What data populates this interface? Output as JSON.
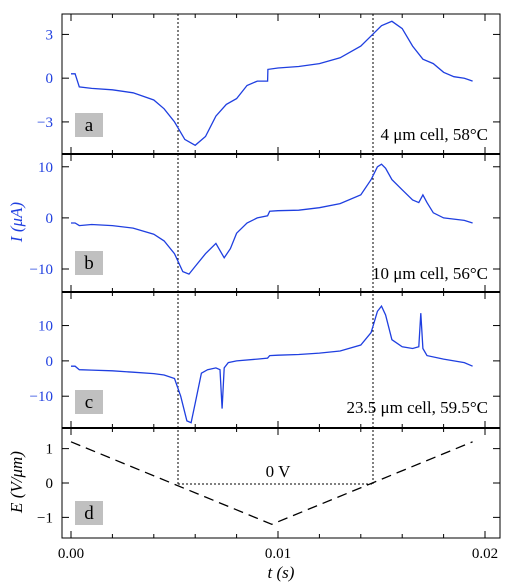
{
  "colors": {
    "trace": "#1f3fe0",
    "axis": "#000000",
    "tag_bg": "#c0c0c0"
  },
  "chart_data": [
    {
      "type": "line",
      "panel_label": "a",
      "annotation": "4 μm cell, 58°C",
      "xlim": [
        0,
        0.02
      ],
      "ylim": [
        -5.2,
        4.4
      ],
      "yticks": [
        3,
        0,
        -3
      ],
      "ytick_labels": [
        "3",
        "0",
        "−3"
      ],
      "series": [
        {
          "x": [
            0,
            0.0002,
            0.0004,
            0.001,
            0.002,
            0.003,
            0.004,
            0.0045,
            0.005,
            0.0055,
            0.006,
            0.0065,
            0.007,
            0.0075,
            0.008,
            0.0085,
            0.009,
            0.0095,
            0.00951,
            0.01,
            0.011,
            0.012,
            0.013,
            0.014,
            0.0145,
            0.015,
            0.0155,
            0.016,
            0.0165,
            0.017,
            0.0175,
            0.018,
            0.0185,
            0.019,
            0.0192,
            0.0194
          ],
          "y": [
            0.3,
            0.3,
            -0.6,
            -0.7,
            -0.8,
            -1.0,
            -1.5,
            -2.1,
            -3.0,
            -4.2,
            -4.6,
            -4.0,
            -2.6,
            -1.8,
            -1.4,
            -0.5,
            -0.2,
            -0.2,
            0.6,
            0.7,
            0.8,
            1.0,
            1.4,
            2.2,
            2.9,
            3.6,
            3.9,
            3.4,
            2.2,
            1.3,
            1.0,
            0.4,
            0.1,
            0.0,
            -0.1,
            -0.2
          ]
        }
      ]
    },
    {
      "type": "line",
      "panel_label": "b",
      "annotation": "10 μm cell, 56°C",
      "xlim": [
        0,
        0.02
      ],
      "ylim": [
        -14.5,
        12.5
      ],
      "yticks": [
        10,
        0,
        -10
      ],
      "ytick_labels": [
        "10",
        "0",
        "−10"
      ],
      "ylabel": "I (μA)",
      "series": [
        {
          "x": [
            0,
            0.0002,
            0.0004,
            0.001,
            0.002,
            0.003,
            0.004,
            0.0045,
            0.005,
            0.0054,
            0.0057,
            0.006,
            0.0065,
            0.007,
            0.0074,
            0.0077,
            0.008,
            0.0085,
            0.009,
            0.0095,
            0.0096,
            0.01,
            0.011,
            0.012,
            0.013,
            0.014,
            0.0145,
            0.0148,
            0.015,
            0.0152,
            0.0155,
            0.016,
            0.0165,
            0.0168,
            0.017,
            0.0172,
            0.0175,
            0.018,
            0.019,
            0.0194
          ],
          "y": [
            -1.0,
            -1.0,
            -1.5,
            -1.3,
            -1.5,
            -2.0,
            -3.2,
            -4.5,
            -7.0,
            -10.5,
            -11.0,
            -9.5,
            -7.0,
            -5.0,
            -7.8,
            -6.0,
            -3.0,
            -1.0,
            0.0,
            0.4,
            1.3,
            1.4,
            1.5,
            2.0,
            2.8,
            4.5,
            7.5,
            10.0,
            10.5,
            9.7,
            7.5,
            5.5,
            3.5,
            3.0,
            4.5,
            3.0,
            1.0,
            0.0,
            -0.5,
            -1.0
          ]
        }
      ]
    },
    {
      "type": "line",
      "panel_label": "c",
      "annotation": "23.5 μm cell, 59.5°C",
      "xlim": [
        0,
        0.02
      ],
      "ylim": [
        -19,
        19.5
      ],
      "yticks": [
        10,
        0,
        -10
      ],
      "ytick_labels": [
        "10",
        "0",
        "−10"
      ],
      "series": [
        {
          "x": [
            0,
            0.0002,
            0.0004,
            0.001,
            0.002,
            0.003,
            0.004,
            0.0045,
            0.005,
            0.0053,
            0.0056,
            0.0058,
            0.006,
            0.0063,
            0.0066,
            0.007,
            0.0072,
            0.0073,
            0.0074,
            0.0076,
            0.008,
            0.009,
            0.0095,
            0.0096,
            0.01,
            0.011,
            0.012,
            0.013,
            0.014,
            0.0145,
            0.0148,
            0.015,
            0.0152,
            0.0155,
            0.016,
            0.0165,
            0.0168,
            0.0169,
            0.017,
            0.0172,
            0.018,
            0.019,
            0.0194
          ],
          "y": [
            -1.5,
            -1.5,
            -2.5,
            -2.6,
            -2.8,
            -3.2,
            -3.6,
            -4.0,
            -5.0,
            -10.0,
            -17.0,
            -17.5,
            -12.0,
            -3.5,
            -2.5,
            -2.0,
            -2.5,
            -13.5,
            -2.0,
            -0.5,
            0.0,
            0.5,
            0.8,
            1.5,
            1.6,
            1.8,
            2.2,
            2.8,
            4.5,
            8.0,
            14.0,
            15.5,
            13.0,
            6.0,
            4.0,
            3.5,
            4.0,
            13.5,
            3.5,
            1.5,
            0.5,
            -0.5,
            -1.5
          ]
        }
      ]
    },
    {
      "type": "line",
      "panel_label": "d",
      "annotation": "0 V",
      "xlim": [
        0,
        0.02
      ],
      "ylim": [
        -1.6,
        1.6
      ],
      "yticks": [
        1,
        0,
        -1
      ],
      "ytick_labels": [
        "1",
        "0",
        "−1"
      ],
      "ylabel": "E (V/μm)",
      "xlabel": "t (s)",
      "xticks": [
        0,
        0.01,
        0.02
      ],
      "xtick_labels": [
        "0.00",
        "0.01",
        "0.02"
      ],
      "zero_crossings": [
        0.0052,
        0.0142
      ],
      "series": [
        {
          "x": [
            0,
            0.0097,
            0.0194
          ],
          "y": [
            1.2,
            -1.2,
            1.2
          ]
        }
      ]
    }
  ]
}
